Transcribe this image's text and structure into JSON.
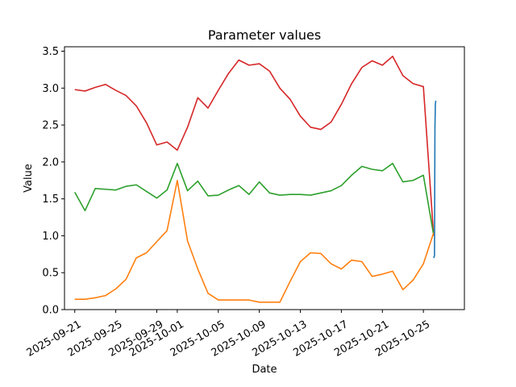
{
  "chart_data": {
    "type": "line",
    "title": "Parameter values",
    "xlabel": "Date",
    "ylabel": "Value",
    "ylim": [
      0.0,
      3.56
    ],
    "xlim": [
      "2025-09-20",
      "2025-10-29"
    ],
    "grid": false,
    "legend": "none",
    "x_ticks": [
      "2025-09-21",
      "2025-09-25",
      "2025-09-29",
      "2025-10-01",
      "2025-10-05",
      "2025-10-09",
      "2025-10-13",
      "2025-10-17",
      "2025-10-21",
      "2025-10-25"
    ],
    "y_ticks": [
      "0.0",
      "0.5",
      "1.0",
      "1.5",
      "2.0",
      "2.5",
      "3.0",
      "3.5"
    ],
    "series": [
      {
        "color": "#d62728",
        "x": [
          "2025-09-21",
          "2025-09-22",
          "2025-09-23",
          "2025-09-24",
          "2025-09-25",
          "2025-09-26",
          "2025-09-27",
          "2025-09-28",
          "2025-09-29",
          "2025-09-30",
          "2025-10-01",
          "2025-10-02",
          "2025-10-03",
          "2025-10-04",
          "2025-10-05",
          "2025-10-06",
          "2025-10-07",
          "2025-10-08",
          "2025-10-09",
          "2025-10-10",
          "2025-10-11",
          "2025-10-12",
          "2025-10-13",
          "2025-10-14",
          "2025-10-15",
          "2025-10-16",
          "2025-10-17",
          "2025-10-18",
          "2025-10-19",
          "2025-10-20",
          "2025-10-21",
          "2025-10-22",
          "2025-10-23",
          "2025-10-24",
          "2025-10-25",
          "2025-10-26"
        ],
        "values": [
          2.98,
          2.96,
          3.01,
          3.05,
          2.97,
          2.9,
          2.76,
          2.53,
          2.23,
          2.27,
          2.16,
          2.47,
          2.87,
          2.73,
          2.97,
          3.2,
          3.38,
          3.31,
          3.33,
          3.23,
          3.0,
          2.85,
          2.62,
          2.47,
          2.44,
          2.54,
          2.78,
          3.06,
          3.28,
          3.37,
          3.31,
          3.43,
          3.17,
          3.06,
          3.02,
          1.0
        ]
      },
      {
        "color": "#2ca02c",
        "x": [
          "2025-09-21",
          "2025-09-22",
          "2025-09-23",
          "2025-09-24",
          "2025-09-25",
          "2025-09-26",
          "2025-09-27",
          "2025-09-28",
          "2025-09-29",
          "2025-09-30",
          "2025-10-01",
          "2025-10-02",
          "2025-10-03",
          "2025-10-04",
          "2025-10-05",
          "2025-10-06",
          "2025-10-07",
          "2025-10-08",
          "2025-10-09",
          "2025-10-10",
          "2025-10-11",
          "2025-10-12",
          "2025-10-13",
          "2025-10-14",
          "2025-10-15",
          "2025-10-16",
          "2025-10-17",
          "2025-10-18",
          "2025-10-19",
          "2025-10-20",
          "2025-10-21",
          "2025-10-22",
          "2025-10-23",
          "2025-10-24",
          "2025-10-25",
          "2025-10-26"
        ],
        "values": [
          1.59,
          1.34,
          1.64,
          1.63,
          1.62,
          1.67,
          1.69,
          1.6,
          1.51,
          1.62,
          1.98,
          1.61,
          1.74,
          1.54,
          1.55,
          1.62,
          1.68,
          1.56,
          1.73,
          1.58,
          1.55,
          1.56,
          1.56,
          1.55,
          1.58,
          1.61,
          1.68,
          1.82,
          1.94,
          1.9,
          1.88,
          1.98,
          1.73,
          1.75,
          1.82,
          1.01
        ]
      },
      {
        "color": "#ff7f0e",
        "x": [
          "2025-09-21",
          "2025-09-22",
          "2025-09-23",
          "2025-09-24",
          "2025-09-25",
          "2025-09-26",
          "2025-09-27",
          "2025-09-28",
          "2025-09-29",
          "2025-09-30",
          "2025-10-01",
          "2025-10-02",
          "2025-10-03",
          "2025-10-04",
          "2025-10-05",
          "2025-10-06",
          "2025-10-07",
          "2025-10-08",
          "2025-10-09",
          "2025-10-10",
          "2025-10-11",
          "2025-10-12",
          "2025-10-13",
          "2025-10-14",
          "2025-10-15",
          "2025-10-16",
          "2025-10-17",
          "2025-10-18",
          "2025-10-19",
          "2025-10-20",
          "2025-10-21",
          "2025-10-22",
          "2025-10-23",
          "2025-10-24",
          "2025-10-25",
          "2025-10-26"
        ],
        "values": [
          0.14,
          0.14,
          0.16,
          0.19,
          0.28,
          0.41,
          0.7,
          0.77,
          0.92,
          1.07,
          1.75,
          0.93,
          0.55,
          0.22,
          0.13,
          0.13,
          0.13,
          0.13,
          0.1,
          0.1,
          0.1,
          0.38,
          0.65,
          0.77,
          0.76,
          0.62,
          0.55,
          0.67,
          0.65,
          0.45,
          0.48,
          0.52,
          0.27,
          0.4,
          0.62,
          1.04
        ]
      },
      {
        "color": "#1f77b4",
        "x": [
          "2025-10-26",
          "2025-10-26T02:00",
          "2025-10-26T03:00",
          "2025-10-26T04:00",
          "2025-10-26T05:00"
        ],
        "values": [
          0.7,
          0.73,
          2.44,
          2.78,
          2.83
        ]
      }
    ]
  }
}
